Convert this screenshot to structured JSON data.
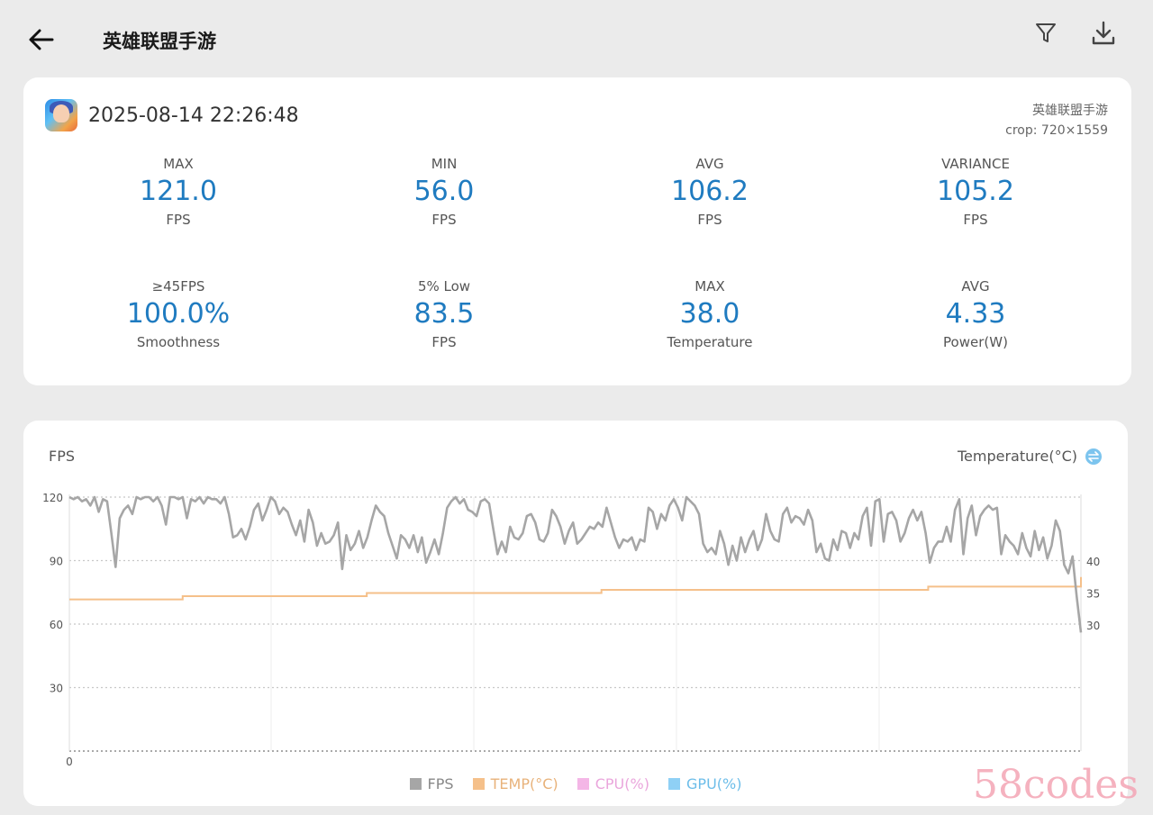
{
  "header": {
    "title": "英雄联盟手游",
    "back_icon": "back-arrow-icon",
    "filter_icon": "filter-icon",
    "download_icon": "download-icon"
  },
  "summary": {
    "datetime": "2025-08-14 22:26:48",
    "app_name": "英雄联盟手游",
    "crop": "crop: 720×1559",
    "stats": [
      {
        "label": "MAX",
        "value": "121.0",
        "unit": "FPS"
      },
      {
        "label": "MIN",
        "value": "56.0",
        "unit": "FPS"
      },
      {
        "label": "AVG",
        "value": "106.2",
        "unit": "FPS"
      },
      {
        "label": "VARIANCE",
        "value": "105.2",
        "unit": "FPS"
      },
      {
        "label": "≥45FPS",
        "value": "100.0%",
        "unit": "Smoothness"
      },
      {
        "label": "5% Low",
        "value": "83.5",
        "unit": "FPS"
      },
      {
        "label": "MAX",
        "value": "38.0",
        "unit": "Temperature"
      },
      {
        "label": "AVG",
        "value": "4.33",
        "unit": "Power(W)"
      }
    ]
  },
  "chart_panel": {
    "left_axis_name": "FPS",
    "right_axis_name": "Temperature(°C)",
    "swap_icon": "swap-icon",
    "x_zero_label": "0",
    "legend": [
      {
        "label": "FPS",
        "color": "#a6a6a6"
      },
      {
        "label": "TEMP(°C)",
        "color": "#f5c08a"
      },
      {
        "label": "CPU(%)",
        "color": "#f4b6e6"
      },
      {
        "label": "GPU(%)",
        "color": "#8fd0f5"
      }
    ]
  },
  "chart_data": {
    "type": "line",
    "left_yticks": [
      120,
      90,
      60,
      30
    ],
    "left_ylim": [
      0,
      120
    ],
    "right_yticks": [
      40,
      35,
      30
    ],
    "right_ylim": [
      20,
      45
    ],
    "grid": true,
    "legend_position": "bottom",
    "series": [
      {
        "name": "FPS",
        "color": "#a6a6a6",
        "axis": "left",
        "values": [
          120,
          119,
          120,
          118,
          119,
          116,
          120,
          113,
          119,
          118,
          103,
          87,
          110,
          114,
          116,
          112,
          120,
          119,
          120,
          120,
          118,
          120,
          116,
          107,
          120,
          120,
          119,
          120,
          110,
          119,
          118,
          120,
          117,
          120,
          119,
          119,
          117,
          120,
          112,
          101,
          102,
          105,
          100,
          106,
          114,
          117,
          109,
          114,
          120,
          118,
          112,
          115,
          113,
          107,
          102,
          109,
          99,
          114,
          108,
          97,
          103,
          98,
          99,
          102,
          108,
          86,
          102,
          95,
          98,
          104,
          96,
          101,
          109,
          116,
          113,
          111,
          103,
          97,
          91,
          102,
          100,
          96,
          102,
          94,
          101,
          89,
          94,
          100,
          93,
          103,
          115,
          118,
          120,
          117,
          119,
          114,
          113,
          111,
          118,
          119,
          117,
          105,
          93,
          99,
          94,
          106,
          101,
          100,
          103,
          111,
          112,
          108,
          100,
          99,
          103,
          114,
          111,
          106,
          98,
          104,
          108,
          98,
          100,
          103,
          106,
          105,
          108,
          106,
          115,
          108,
          101,
          96,
          100,
          99,
          101,
          95,
          100,
          99,
          115,
          113,
          105,
          112,
          109,
          116,
          119,
          115,
          109,
          120,
          118,
          116,
          112,
          98,
          94,
          96,
          93,
          104,
          98,
          88,
          97,
          90,
          101,
          94,
          100,
          104,
          95,
          100,
          112,
          104,
          100,
          99,
          112,
          115,
          108,
          111,
          110,
          107,
          114,
          109,
          94,
          98,
          91,
          90,
          100,
          95,
          104,
          103,
          96,
          103,
          100,
          111,
          115,
          97,
          118,
          119,
          99,
          112,
          113,
          109,
          99,
          103,
          110,
          114,
          109,
          113,
          103,
          89,
          96,
          99,
          99,
          106,
          99,
          114,
          119,
          93,
          110,
          116,
          102,
          111,
          114,
          116,
          114,
          115,
          93,
          102,
          99,
          97,
          93,
          103,
          96,
          92,
          104,
          95,
          101,
          91,
          97,
          109,
          104,
          88,
          84,
          92,
          73,
          56
        ]
      },
      {
        "name": "TEMP(°C)",
        "color": "#f5c08a",
        "axis": "right",
        "x": [
          0,
          0.112,
          0.294,
          0.526,
          0.849,
          1.0
        ],
        "values": [
          34,
          34.5,
          35,
          35.5,
          36,
          37.5
        ]
      },
      {
        "name": "CPU(%)",
        "color": "#f4b6e6",
        "axis": "right",
        "values": []
      },
      {
        "name": "GPU(%)",
        "color": "#8fd0f5",
        "axis": "right",
        "values": []
      }
    ]
  },
  "watermark": "58codes"
}
